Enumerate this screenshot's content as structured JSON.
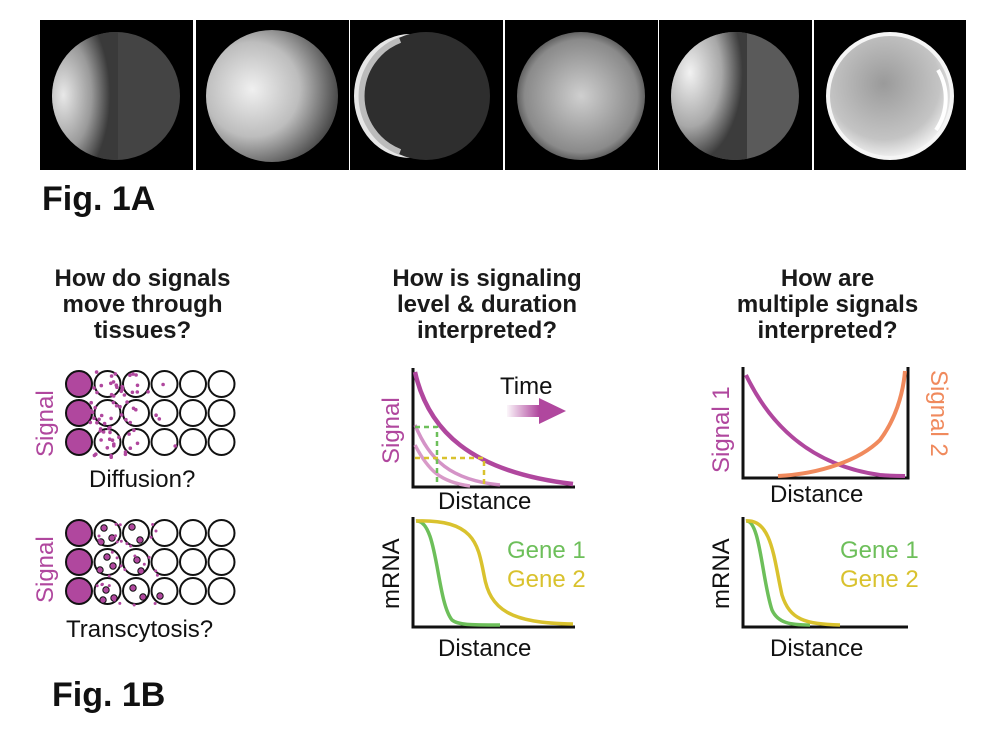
{
  "fig1a": {
    "label": "Fig. 1A",
    "panels": [
      {
        "id": "p1",
        "pattern": "left-bright"
      },
      {
        "id": "p2",
        "pattern": "uniform-bright"
      },
      {
        "id": "p3",
        "pattern": "crescent-left"
      },
      {
        "id": "p4",
        "pattern": "uniform-dim"
      },
      {
        "id": "p5",
        "pattern": "upper-left-bright"
      },
      {
        "id": "p6",
        "pattern": "ring-bright"
      }
    ]
  },
  "fig1b": {
    "label": "Fig. 1B",
    "col1": {
      "question": [
        "How do signals",
        "move through",
        "tissues?"
      ],
      "signal_label": "Signal",
      "diffusion_label": "Diffusion?",
      "transcytosis_label": "Transcytosis?"
    },
    "col2": {
      "question": [
        "How is signaling",
        "level & duration",
        "interpreted?"
      ],
      "signal_label": "Signal",
      "time_label": "Time",
      "distance_label": "Distance",
      "mrna_label": "mRNA",
      "gene1_label": "Gene 1",
      "gene2_label": "Gene 2"
    },
    "col3": {
      "question": [
        "How are",
        "multiple signals",
        "interpreted?"
      ],
      "signal1_label": "Signal 1",
      "signal2_label": "Signal 2",
      "distance_label": "Distance",
      "mrna_label": "mRNA",
      "gene1_label": "Gene 1",
      "gene2_label": "Gene 2"
    }
  },
  "colors": {
    "signal": "#b0479e",
    "signal_light": "#d89ac8",
    "gene1": "#6dbf5a",
    "gene2": "#d9c22e",
    "signal2": "#f08a5d"
  }
}
